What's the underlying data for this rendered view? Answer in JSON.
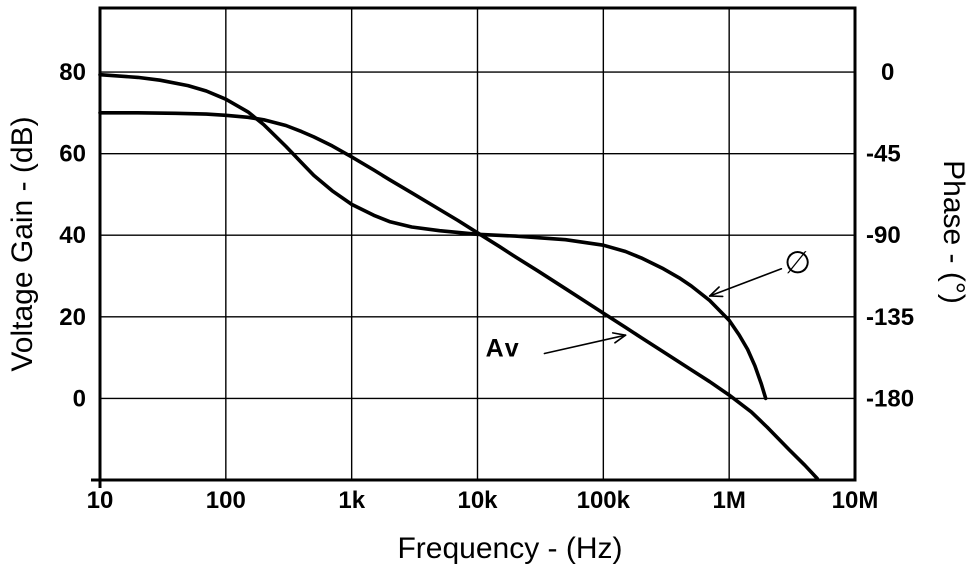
{
  "chart_data": {
    "type": "line",
    "title": "",
    "grid": true,
    "colors": {
      "foreground": "#000000",
      "background": "#ffffff"
    },
    "x_axis": {
      "label": "Frequency - (Hz)",
      "scale": "log",
      "min": 10,
      "max": 10000000,
      "tick_labels": [
        "10",
        "100",
        "1k",
        "10k",
        "100k",
        "1M",
        "10M"
      ],
      "tick_values": [
        10,
        100,
        1000,
        10000,
        100000,
        1000000,
        10000000
      ]
    },
    "y_axis_left": {
      "label": "Voltage Gain - (dB)",
      "min": -20,
      "max": 95.7,
      "tick_labels": [
        "80",
        "60",
        "40",
        "20",
        "0"
      ],
      "tick_values": [
        80,
        60,
        40,
        20,
        0
      ]
    },
    "y_axis_right": {
      "label": "Phase - (°)",
      "min": -225,
      "max": 35.3,
      "tick_labels": [
        "0",
        "-45",
        "-90",
        "-135",
        "-180"
      ],
      "tick_values": [
        0,
        -45,
        -90,
        -135,
        -180
      ]
    },
    "series": [
      {
        "name": "Av",
        "axis": "left",
        "color": "#000000",
        "points": [
          [
            10,
            70
          ],
          [
            20,
            70
          ],
          [
            40,
            69.9
          ],
          [
            70,
            69.7
          ],
          [
            100,
            69.4
          ],
          [
            150,
            68.9
          ],
          [
            200,
            68.3
          ],
          [
            300,
            66.9
          ],
          [
            400,
            65.4
          ],
          [
            500,
            64.1
          ],
          [
            700,
            61.9
          ],
          [
            1000,
            59.2
          ],
          [
            1500,
            56
          ],
          [
            2000,
            53.6
          ],
          [
            3000,
            50.4
          ],
          [
            5000,
            46.3
          ],
          [
            7000,
            43.6
          ],
          [
            10000,
            40.6
          ],
          [
            15000,
            37.2
          ],
          [
            20000,
            34.7
          ],
          [
            30000,
            31.3
          ],
          [
            50000,
            26.9
          ],
          [
            70000,
            24
          ],
          [
            100000,
            20.9
          ],
          [
            150000,
            17.4
          ],
          [
            200000,
            14.9
          ],
          [
            300000,
            11.4
          ],
          [
            500000,
            7
          ],
          [
            700000,
            4.1
          ],
          [
            1000000,
            0.8
          ],
          [
            1500000,
            -3.3
          ],
          [
            2000000,
            -7
          ],
          [
            3000000,
            -12.6
          ],
          [
            4000000,
            -16.4
          ],
          [
            5000000,
            -19.6
          ]
        ]
      },
      {
        "name": "phase",
        "axis": "right",
        "color": "#000000",
        "points": [
          [
            10,
            -1.5
          ],
          [
            20,
            -3
          ],
          [
            30,
            -4.5
          ],
          [
            50,
            -7.5
          ],
          [
            70,
            -10.5
          ],
          [
            100,
            -15
          ],
          [
            150,
            -22
          ],
          [
            200,
            -29
          ],
          [
            300,
            -41
          ],
          [
            400,
            -50
          ],
          [
            500,
            -57
          ],
          [
            700,
            -65.5
          ],
          [
            1000,
            -73
          ],
          [
            1500,
            -79
          ],
          [
            2000,
            -82.5
          ],
          [
            3000,
            -85.5
          ],
          [
            5000,
            -87.5
          ],
          [
            10000,
            -89.5
          ],
          [
            20000,
            -90.5
          ],
          [
            50000,
            -92.5
          ],
          [
            100000,
            -95.5
          ],
          [
            150000,
            -99
          ],
          [
            200000,
            -102.5
          ],
          [
            300000,
            -108.5
          ],
          [
            400000,
            -113.5
          ],
          [
            500000,
            -118
          ],
          [
            700000,
            -126
          ],
          [
            1000000,
            -137
          ],
          [
            1200000,
            -145
          ],
          [
            1400000,
            -153
          ],
          [
            1600000,
            -162
          ],
          [
            1800000,
            -172
          ],
          [
            1950000,
            -180
          ]
        ]
      }
    ],
    "annotations": [
      {
        "id": "av-label",
        "text": "Av",
        "axis": "left",
        "text_at": {
          "x": 16000,
          "y": 12.5
        },
        "arrow_from": {
          "x": 34000,
          "y": 11
        },
        "arrow_to": {
          "x": 150000,
          "y": 15.5
        }
      },
      {
        "id": "phase-label",
        "text": "∅",
        "axis": "right",
        "text_at": {
          "x": 3500000,
          "y": -106
        },
        "arrow_from": {
          "x": 2600000,
          "y": -108.5
        },
        "arrow_to": {
          "x": 700000,
          "y": -123.5
        }
      }
    ]
  }
}
